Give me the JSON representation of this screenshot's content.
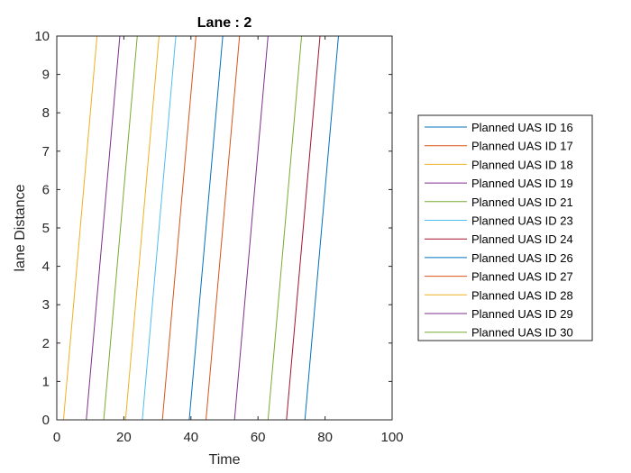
{
  "chart_data": {
    "type": "line",
    "title": "Lane : 2",
    "xlabel": "Time",
    "ylabel": "lane Distance",
    "xlim": [
      0,
      100
    ],
    "ylim": [
      0,
      10
    ],
    "xticks": [
      "0",
      "20",
      "40",
      "60",
      "80",
      "100"
    ],
    "yticks": [
      "0",
      "1",
      "2",
      "3",
      "4",
      "5",
      "6",
      "7",
      "8",
      "9",
      "10"
    ],
    "grid": false,
    "legend_position": "right",
    "series": [
      {
        "name": "Planned UAS ID 16",
        "color": "#0072BD",
        "x": [
          39.5,
          49.5
        ],
        "y": [
          0,
          10
        ]
      },
      {
        "name": "Planned UAS ID 17",
        "color": "#D95319",
        "x": [
          31.5,
          41.5
        ],
        "y": [
          0,
          10
        ]
      },
      {
        "name": "Planned UAS ID 18",
        "color": "#EDB120",
        "x": [
          2.0,
          12.0
        ],
        "y": [
          0,
          10
        ]
      },
      {
        "name": "Planned UAS ID 19",
        "color": "#7E2F8E",
        "x": [
          8.8,
          18.8
        ],
        "y": [
          0,
          10
        ]
      },
      {
        "name": "Planned UAS ID 21",
        "color": "#77AC30",
        "x": [
          14.0,
          24.0
        ],
        "y": [
          0,
          10
        ]
      },
      {
        "name": "Planned UAS ID 23",
        "color": "#4DBEEE",
        "x": [
          25.5,
          35.5
        ],
        "y": [
          0,
          10
        ]
      },
      {
        "name": "Planned UAS ID 24",
        "color": "#A2142F",
        "x": [
          68.5,
          78.5
        ],
        "y": [
          0,
          10
        ]
      },
      {
        "name": "Planned UAS ID 26",
        "color": "#0072BD",
        "x": [
          74.0,
          84.0
        ],
        "y": [
          0,
          10
        ]
      },
      {
        "name": "Planned UAS ID 27",
        "color": "#D95319",
        "x": [
          44.5,
          54.5
        ],
        "y": [
          0,
          10
        ]
      },
      {
        "name": "Planned UAS ID 28",
        "color": "#EDB120",
        "x": [
          20.5,
          30.5
        ],
        "y": [
          0,
          10
        ]
      },
      {
        "name": "Planned UAS ID 29",
        "color": "#7E2F8E",
        "x": [
          53.0,
          63.0
        ],
        "y": [
          0,
          10
        ]
      },
      {
        "name": "Planned UAS ID 30",
        "color": "#77AC30",
        "x": [
          63.0,
          73.0
        ],
        "y": [
          0,
          10
        ]
      }
    ]
  }
}
